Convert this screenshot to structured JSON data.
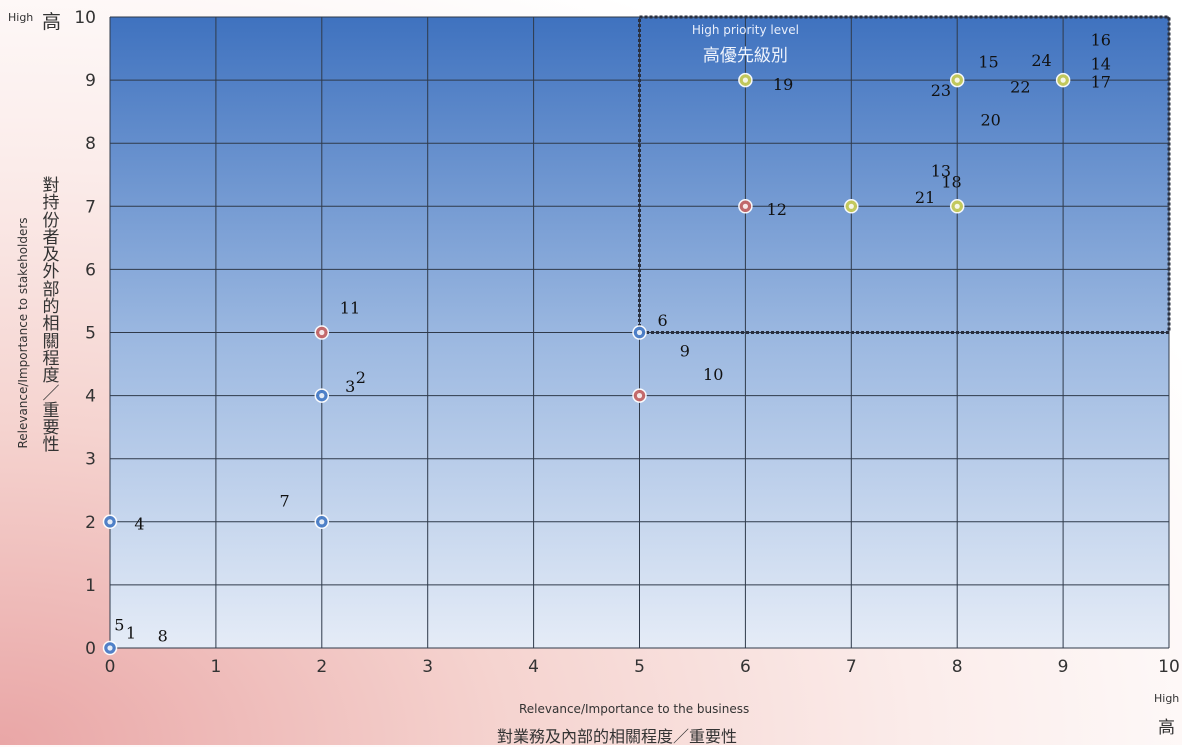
{
  "chart_data": {
    "type": "scatter",
    "xlabel": "Relevance/Importance to the business",
    "xlabel_zh": "對業務及內部的相關程度／重要性",
    "ylabel": "Relevance/Importance to stakeholders",
    "ylabel_zh": "對持份者及外部的相關程度／重要性",
    "x_high_en": "High",
    "x_high_zh": "高",
    "y_high_en": "High",
    "y_high_zh": "高",
    "xlim": [
      0,
      10
    ],
    "ylim": [
      0,
      10
    ],
    "xticks": [
      0,
      1,
      2,
      3,
      4,
      5,
      6,
      7,
      8,
      9,
      10
    ],
    "yticks": [
      0,
      1,
      2,
      3,
      4,
      5,
      6,
      7,
      8,
      9,
      10
    ],
    "grid": true,
    "region": {
      "x": [
        5,
        10
      ],
      "y": [
        5,
        10
      ],
      "label_en": "High priority level",
      "label_zh": "高優先級別"
    },
    "points": [
      {
        "x": 0,
        "y": 0,
        "color": "blue"
      },
      {
        "x": 0,
        "y": 2,
        "color": "blue"
      },
      {
        "x": 2,
        "y": 2,
        "color": "blue"
      },
      {
        "x": 2,
        "y": 4,
        "color": "blue"
      },
      {
        "x": 2,
        "y": 5,
        "color": "red"
      },
      {
        "x": 5,
        "y": 4,
        "color": "red"
      },
      {
        "x": 5,
        "y": 5,
        "color": "blue"
      },
      {
        "x": 6,
        "y": 7,
        "color": "red"
      },
      {
        "x": 6,
        "y": 9,
        "color": "yellow"
      },
      {
        "x": 7,
        "y": 7,
        "color": "yellow"
      },
      {
        "x": 8,
        "y": 7,
        "color": "yellow"
      },
      {
        "x": 8,
        "y": 9,
        "color": "yellow"
      },
      {
        "x": 9,
        "y": 9,
        "color": "yellow"
      }
    ],
    "labels": [
      {
        "text": "5",
        "x": 0.04,
        "y": 0.28
      },
      {
        "text": "1",
        "x": 0.15,
        "y": 0.15
      },
      {
        "text": "8",
        "x": 0.45,
        "y": 0.1
      },
      {
        "text": "4",
        "x": 0.23,
        "y": 1.88
      },
      {
        "text": "7",
        "x": 1.6,
        "y": 2.24
      },
      {
        "text": "3",
        "x": 2.22,
        "y": 4.06
      },
      {
        "text": "2",
        "x": 2.32,
        "y": 4.2
      },
      {
        "text": "11",
        "x": 2.17,
        "y": 5.3
      },
      {
        "text": "6",
        "x": 5.17,
        "y": 5.1
      },
      {
        "text": "9",
        "x": 5.38,
        "y": 4.62
      },
      {
        "text": "10",
        "x": 5.6,
        "y": 4.25
      },
      {
        "text": "12",
        "x": 6.2,
        "y": 6.86
      },
      {
        "text": "19",
        "x": 6.26,
        "y": 8.84
      },
      {
        "text": "21",
        "x": 7.6,
        "y": 7.05
      },
      {
        "text": "13",
        "x": 7.75,
        "y": 7.47
      },
      {
        "text": "18",
        "x": 7.85,
        "y": 7.3
      },
      {
        "text": "23",
        "x": 7.75,
        "y": 8.75
      },
      {
        "text": "15",
        "x": 8.2,
        "y": 9.2
      },
      {
        "text": "22",
        "x": 8.5,
        "y": 8.8
      },
      {
        "text": "20",
        "x": 8.22,
        "y": 8.28
      },
      {
        "text": "24",
        "x": 8.7,
        "y": 9.22
      },
      {
        "text": "16",
        "x": 9.26,
        "y": 9.55
      },
      {
        "text": "14",
        "x": 9.26,
        "y": 9.17
      },
      {
        "text": "17",
        "x": 9.26,
        "y": 8.88
      }
    ]
  },
  "colors": {
    "blue": "#4a7ec8",
    "red": "#c66767",
    "yellow": "#c8cc58"
  }
}
